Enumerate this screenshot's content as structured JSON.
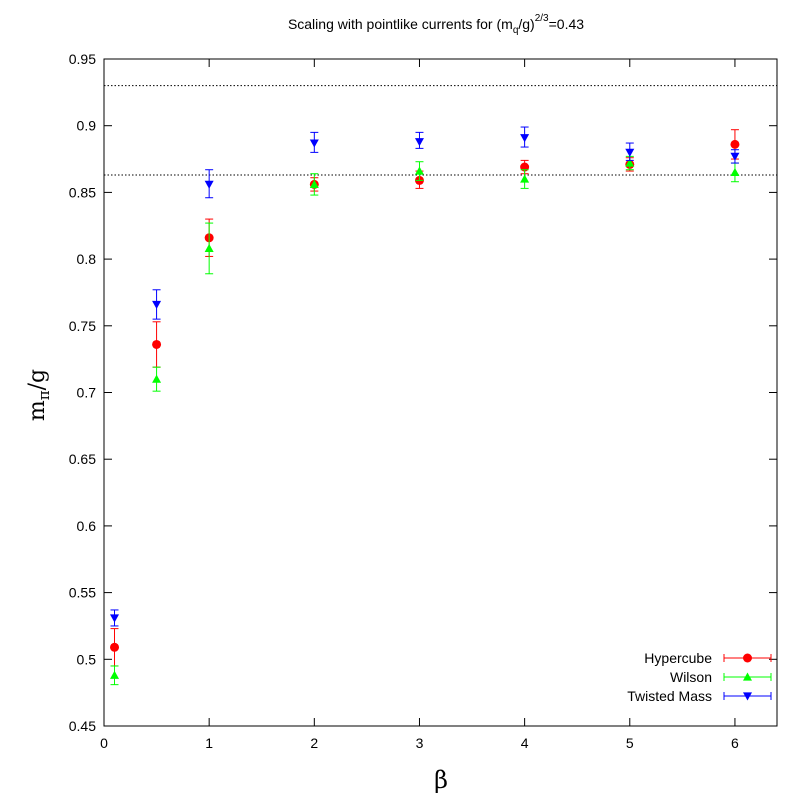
{
  "chart_data": {
    "type": "scatter",
    "title": {
      "main": "Scaling with pointlike currents for (m",
      "sub": "q",
      "mid": "/g)",
      "sup": "2/3",
      "tail": "=0.43"
    },
    "xlabel": "β",
    "ylabel": {
      "main": "m",
      "sub": "π",
      "tail": "/g"
    },
    "xlim": [
      0,
      6.4
    ],
    "ylim": [
      0.45,
      0.95
    ],
    "x_ticks": [
      "0",
      "1",
      "2",
      "3",
      "4",
      "5",
      "6"
    ],
    "y_ticks": [
      "0.45",
      "0.5",
      "0.55",
      "0.6",
      "0.65",
      "0.7",
      "0.75",
      "0.8",
      "0.85",
      "0.9",
      "0.95"
    ],
    "grid": false,
    "legend_position": "bottom-right",
    "reference_lines": [
      0.93,
      0.863
    ],
    "series": [
      {
        "name": "Hypercube",
        "color": "#ff0000",
        "marker": "circle",
        "points": [
          {
            "x": 0.1,
            "y": 0.509,
            "lo": 0.495,
            "hi": 0.523
          },
          {
            "x": 0.5,
            "y": 0.736,
            "lo": 0.719,
            "hi": 0.753
          },
          {
            "x": 1.0,
            "y": 0.816,
            "lo": 0.802,
            "hi": 0.83
          },
          {
            "x": 2.0,
            "y": 0.856,
            "lo": 0.851,
            "hi": 0.861
          },
          {
            "x": 3.0,
            "y": 0.859,
            "lo": 0.853,
            "hi": 0.866
          },
          {
            "x": 4.0,
            "y": 0.869,
            "lo": 0.864,
            "hi": 0.874
          },
          {
            "x": 5.0,
            "y": 0.871,
            "lo": 0.866,
            "hi": 0.876
          },
          {
            "x": 6.0,
            "y": 0.886,
            "lo": 0.875,
            "hi": 0.897
          }
        ]
      },
      {
        "name": "Wilson",
        "color": "#00ff00",
        "marker": "triangle-up",
        "points": [
          {
            "x": 0.1,
            "y": 0.488,
            "lo": 0.481,
            "hi": 0.495
          },
          {
            "x": 0.5,
            "y": 0.71,
            "lo": 0.701,
            "hi": 0.719
          },
          {
            "x": 1.0,
            "y": 0.808,
            "lo": 0.789,
            "hi": 0.827
          },
          {
            "x": 2.0,
            "y": 0.856,
            "lo": 0.848,
            "hi": 0.864
          },
          {
            "x": 3.0,
            "y": 0.866,
            "lo": 0.859,
            "hi": 0.873
          },
          {
            "x": 4.0,
            "y": 0.86,
            "lo": 0.853,
            "hi": 0.867
          },
          {
            "x": 5.0,
            "y": 0.872,
            "lo": 0.867,
            "hi": 0.877
          },
          {
            "x": 6.0,
            "y": 0.865,
            "lo": 0.858,
            "hi": 0.872
          }
        ]
      },
      {
        "name": "Twisted Mass",
        "color": "#0000ff",
        "marker": "triangle-down",
        "points": [
          {
            "x": 0.1,
            "y": 0.531,
            "lo": 0.525,
            "hi": 0.537
          },
          {
            "x": 0.5,
            "y": 0.766,
            "lo": 0.755,
            "hi": 0.777
          },
          {
            "x": 1.0,
            "y": 0.856,
            "lo": 0.846,
            "hi": 0.867
          },
          {
            "x": 2.0,
            "y": 0.887,
            "lo": 0.88,
            "hi": 0.895
          },
          {
            "x": 3.0,
            "y": 0.888,
            "lo": 0.883,
            "hi": 0.895
          },
          {
            "x": 4.0,
            "y": 0.891,
            "lo": 0.884,
            "hi": 0.899
          },
          {
            "x": 5.0,
            "y": 0.88,
            "lo": 0.874,
            "hi": 0.887
          },
          {
            "x": 6.0,
            "y": 0.877,
            "lo": 0.872,
            "hi": 0.882
          }
        ]
      }
    ]
  }
}
